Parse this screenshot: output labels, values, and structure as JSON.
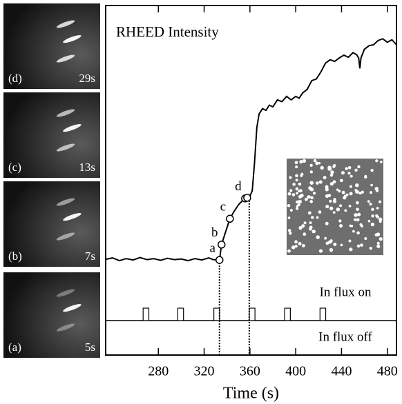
{
  "chart_data": {
    "type": "line",
    "title": "RHEED Intensity",
    "xlabel": "Time (s)",
    "xlim": [
      234,
      488
    ],
    "xticks": [
      280,
      320,
      360,
      400,
      440,
      480
    ],
    "ylim": [
      0,
      100
    ],
    "series": [
      {
        "color": "#000000",
        "x": [
          234,
          240,
          246,
          252,
          258,
          264,
          270,
          276,
          282,
          288,
          294,
          300,
          306,
          312,
          318,
          324,
          328,
          333.4,
          335.2,
          338,
          340,
          342.5,
          346,
          350,
          353,
          355.8,
          357.6,
          360,
          362,
          364,
          366,
          368,
          371,
          374,
          377,
          380,
          384,
          388,
          392,
          396,
          400,
          403,
          406,
          410,
          414,
          418,
          422,
          426,
          430,
          434,
          438,
          442,
          446,
          450,
          453,
          455,
          456,
          457,
          460,
          464,
          468,
          472,
          476,
          480,
          484,
          488
        ],
        "values": [
          27.4,
          27.8,
          27.0,
          27.6,
          27.2,
          27.9,
          27.3,
          27.6,
          27.1,
          27.7,
          27.3,
          27.5,
          27.0,
          27.6,
          27.2,
          27.8,
          27.3,
          27.2,
          31.6,
          34.5,
          36.5,
          39,
          41,
          43,
          44,
          44.8,
          45,
          45.5,
          47,
          55,
          65,
          69,
          70.5,
          70,
          71.5,
          71,
          73,
          72.5,
          74,
          73,
          74,
          73.5,
          75,
          76,
          78.5,
          79,
          81,
          83.5,
          84.5,
          84,
          85,
          85.8,
          85.2,
          86.5,
          86,
          85,
          82,
          85,
          87.5,
          88.5,
          88.8,
          90,
          90.5,
          89.5,
          90.2,
          88.8
        ]
      }
    ],
    "markers": {
      "x": [
        333.4,
        335.2,
        342.5,
        355.8,
        357.6
      ],
      "values": [
        27.2,
        31.6,
        39,
        44.8,
        45
      ],
      "labels": [
        "a",
        "b",
        "c",
        "d",
        null
      ]
    },
    "dotted_lines": {
      "x": [
        333.4,
        359.4
      ]
    },
    "flux": {
      "labels": [
        "In flux on",
        "In flux off"
      ],
      "pulses": [
        269.2,
        299.5,
        331,
        361.9,
        392.8,
        423.7
      ],
      "pulse_width": 5
    },
    "panels": [
      {
        "label": "(d)",
        "time": "29s"
      },
      {
        "label": "(c)",
        "time": "13s"
      },
      {
        "label": "(b)",
        "time": "7s"
      },
      {
        "label": "(a)",
        "time": "5s"
      }
    ]
  }
}
